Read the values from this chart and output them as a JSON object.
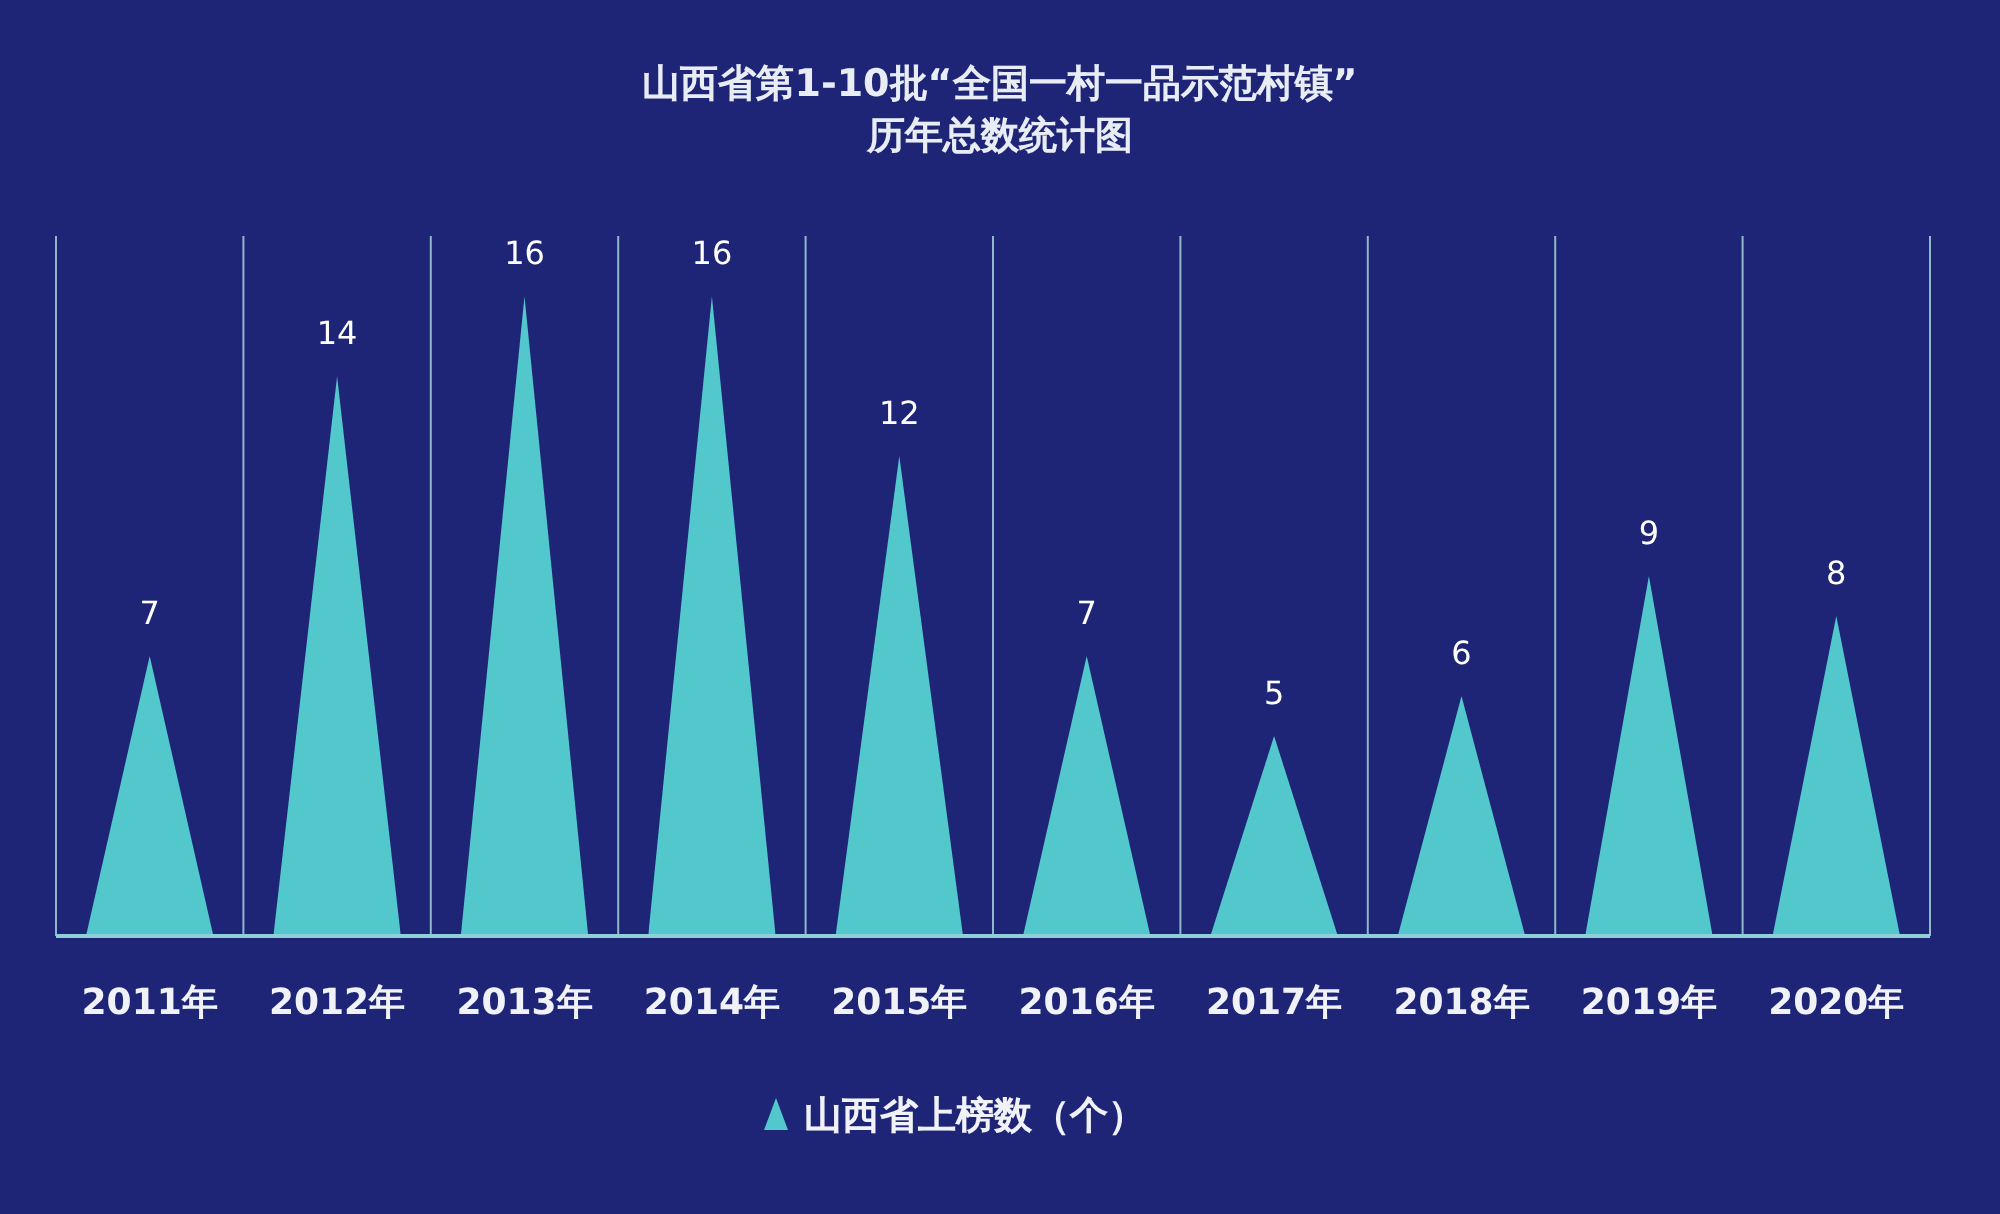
{
  "chart_data": {
    "type": "bar",
    "title": "山西省第1-10批“全国一村一品示范村镇”\n历年总数统计图",
    "categories": [
      "2011年",
      "2012年",
      "2013年",
      "2014年",
      "2015年",
      "2016年",
      "2017年",
      "2018年",
      "2019年",
      "2020年"
    ],
    "series": [
      {
        "name": "山西省上榜数（个）",
        "color": "#52c8cc",
        "values": [
          7,
          14,
          16,
          16,
          12,
          7,
          5,
          6,
          9,
          8
        ]
      }
    ],
    "data_labels": true,
    "grid": "x",
    "legend": "bottom"
  }
}
